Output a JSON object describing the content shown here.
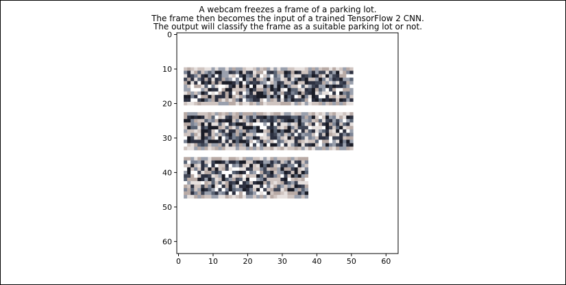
{
  "chart_data": {
    "type": "heatmap",
    "title_lines": [
      "A webcam freezes a frame of a parking lot.",
      "The frame then becomes the input of a trained TensorFlow 2 CNN.",
      "The output will classify the frame as a suitable parking lot or not."
    ],
    "image_shape": [
      64,
      64
    ],
    "xlim": [
      -0.5,
      63.5
    ],
    "ylim": [
      63.5,
      -0.5
    ],
    "x_ticks": [
      0,
      10,
      20,
      30,
      40,
      50,
      60
    ],
    "y_ticks": [
      0,
      10,
      20,
      30,
      40,
      50,
      60
    ],
    "x_tick_labels": [
      "0",
      "10",
      "20",
      "30",
      "40",
      "50",
      "60"
    ],
    "y_tick_labels": [
      "0",
      "10",
      "20",
      "30",
      "40",
      "50",
      "60"
    ],
    "parking_rows": [
      {
        "name": "row-1",
        "x_range": [
          1.5,
          50.5
        ],
        "y_range": [
          9.5,
          20.5
        ]
      },
      {
        "name": "row-2",
        "x_range": [
          1.5,
          50.5
        ],
        "y_range": [
          22.5,
          33.5
        ]
      },
      {
        "name": "row-3",
        "x_range": [
          1.5,
          37.5
        ],
        "y_range": [
          35.5,
          47.5
        ]
      }
    ],
    "palette": [
      "#1a1c26",
      "#2c3040",
      "#3f4555",
      "#5a6475",
      "#7b8394",
      "#9aa0ad",
      "#b8aaa5",
      "#cfc4c0",
      "#e6e0de",
      "#ffffff"
    ],
    "background_color": "#ffffff",
    "grid": false
  }
}
